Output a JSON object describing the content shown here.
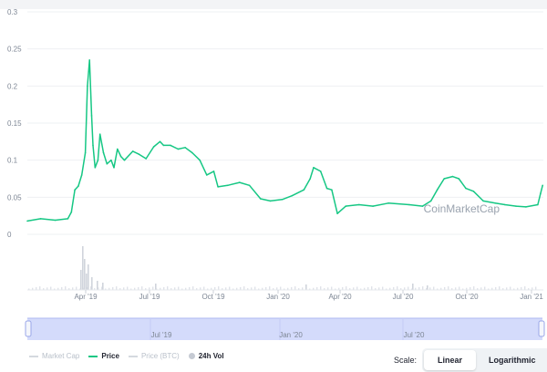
{
  "chart_data": {
    "type": "line",
    "watermark": "CoinMarketCap",
    "y_ticks": [
      "0",
      "0.05",
      "0.1",
      "0.15",
      "0.2",
      "0.25",
      "0.3"
    ],
    "ylim": [
      0,
      0.3
    ],
    "x_ticks": [
      "Apr '19",
      "Jul '19",
      "Oct '19",
      "Jan '20",
      "Apr '20",
      "Jul '20",
      "Oct '20",
      "Jan '21"
    ],
    "navigator_ticks": [
      "Jul '19",
      "Jan '20",
      "Jul '20"
    ],
    "series": [
      {
        "name": "Price",
        "color": "#16c784",
        "x": [
          "2019-01-01",
          "2019-01-20",
          "2019-02-10",
          "2019-02-28",
          "2019-03-05",
          "2019-03-10",
          "2019-03-15",
          "2019-03-20",
          "2019-03-25",
          "2019-03-28",
          "2019-03-31",
          "2019-04-03",
          "2019-04-05",
          "2019-04-08",
          "2019-04-12",
          "2019-04-15",
          "2019-04-20",
          "2019-04-25",
          "2019-05-01",
          "2019-05-05",
          "2019-05-10",
          "2019-05-15",
          "2019-05-20",
          "2019-06-01",
          "2019-06-10",
          "2019-06-20",
          "2019-07-01",
          "2019-07-10",
          "2019-07-15",
          "2019-07-25",
          "2019-08-05",
          "2019-08-15",
          "2019-08-25",
          "2019-09-05",
          "2019-09-15",
          "2019-09-25",
          "2019-10-01",
          "2019-10-15",
          "2019-11-01",
          "2019-11-15",
          "2019-12-01",
          "2019-12-15",
          "2020-01-01",
          "2020-01-15",
          "2020-02-01",
          "2020-02-10",
          "2020-02-15",
          "2020-02-25",
          "2020-03-05",
          "2020-03-12",
          "2020-03-20",
          "2020-04-01",
          "2020-04-20",
          "2020-05-10",
          "2020-06-01",
          "2020-07-01",
          "2020-07-20",
          "2020-08-01",
          "2020-08-10",
          "2020-08-20",
          "2020-09-01",
          "2020-09-10",
          "2020-09-20",
          "2020-10-01",
          "2020-10-15",
          "2020-11-01",
          "2020-11-15",
          "2020-12-01",
          "2020-12-15",
          "2021-01-01",
          "2021-01-05",
          "2021-01-08"
        ],
        "y": [
          0.018,
          0.021,
          0.019,
          0.021,
          0.03,
          0.06,
          0.065,
          0.08,
          0.11,
          0.2,
          0.235,
          0.16,
          0.12,
          0.09,
          0.1,
          0.135,
          0.11,
          0.095,
          0.1,
          0.09,
          0.115,
          0.105,
          0.1,
          0.112,
          0.108,
          0.102,
          0.118,
          0.125,
          0.12,
          0.12,
          0.115,
          0.117,
          0.11,
          0.1,
          0.08,
          0.085,
          0.064,
          0.066,
          0.07,
          0.066,
          0.048,
          0.045,
          0.047,
          0.052,
          0.06,
          0.075,
          0.09,
          0.085,
          0.062,
          0.06,
          0.028,
          0.038,
          0.04,
          0.038,
          0.042,
          0.04,
          0.038,
          0.045,
          0.06,
          0.075,
          0.078,
          0.075,
          0.062,
          0.058,
          0.045,
          0.042,
          0.04,
          0.038,
          0.037,
          0.04,
          0.055,
          0.066
        ]
      }
    ],
    "legend": [
      {
        "key": "market_cap",
        "label": "Market Cap",
        "color": "#d5d9df",
        "style": "line",
        "active": false
      },
      {
        "key": "price",
        "label": "Price",
        "color": "#16c784",
        "style": "line",
        "active": true
      },
      {
        "key": "price_btc",
        "label": "Price (BTC)",
        "color": "#d5d9df",
        "style": "line",
        "active": false
      },
      {
        "key": "vol",
        "label": "24h Vol",
        "color": "#c5cad3",
        "style": "dot",
        "active": true
      }
    ]
  },
  "scale": {
    "label": "Scale:",
    "options": [
      "Linear",
      "Logarithmic"
    ],
    "active": "Linear"
  }
}
